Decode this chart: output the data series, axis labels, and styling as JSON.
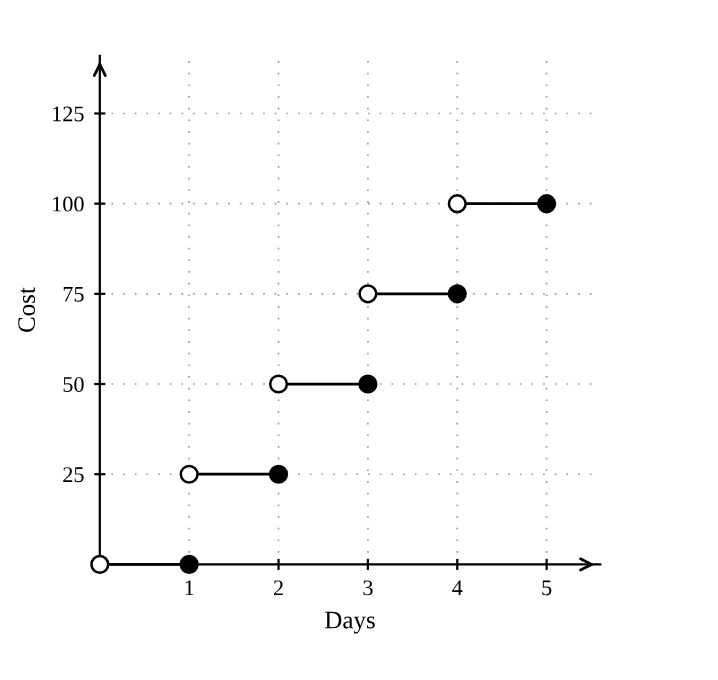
{
  "chart_data": {
    "type": "line",
    "xlabel": "Days",
    "ylabel": "Cost",
    "xlim": [
      0,
      5.6
    ],
    "ylim": [
      0,
      141
    ],
    "xticks": [
      1,
      2,
      3,
      4,
      5
    ],
    "yticks": [
      25,
      50,
      75,
      100,
      125
    ],
    "grid": true,
    "legend": false,
    "series": [
      {
        "color": "#000000",
        "x": [
          0,
          1
        ],
        "values": [
          0,
          0
        ]
      },
      {
        "color": "#000000",
        "x": [
          1,
          2
        ],
        "values": [
          25,
          25
        ]
      },
      {
        "color": "#000000",
        "x": [
          2,
          3
        ],
        "values": [
          50,
          50
        ]
      },
      {
        "color": "#000000",
        "x": [
          3,
          4
        ],
        "values": [
          75,
          75
        ]
      },
      {
        "color": "#000000",
        "x": [
          4,
          5
        ],
        "values": [
          100,
          100
        ]
      },
      {
        "type": "scatter",
        "color": "#ffffff",
        "marker": "circle",
        "x": [
          0,
          1,
          2,
          3,
          4
        ],
        "values": [
          0,
          25,
          50,
          75,
          100
        ]
      },
      {
        "type": "scatter",
        "color": "#000000",
        "marker": "circle",
        "x": [
          1,
          2,
          3,
          4,
          5
        ],
        "values": [
          0,
          25,
          50,
          75,
          100
        ]
      }
    ]
  }
}
